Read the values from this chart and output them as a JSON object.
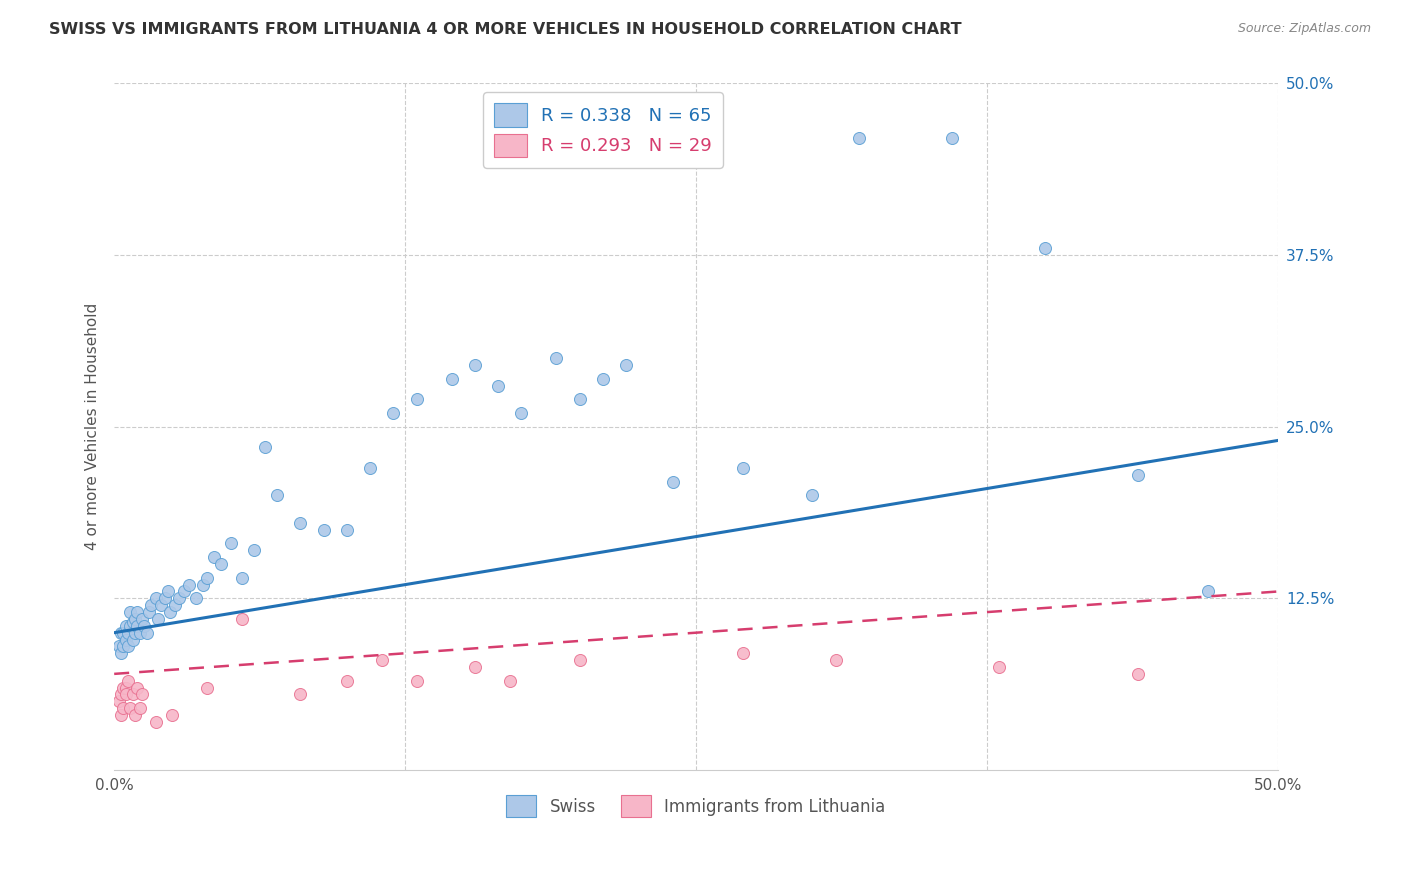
{
  "title": "SWISS VS IMMIGRANTS FROM LITHUANIA 4 OR MORE VEHICLES IN HOUSEHOLD CORRELATION CHART",
  "source": "Source: ZipAtlas.com",
  "ylabel": "4 or more Vehicles in Household",
  "xmin": 0.0,
  "xmax": 0.5,
  "ymin": 0.0,
  "ymax": 0.5,
  "grid_color": "#cccccc",
  "background_color": "#ffffff",
  "swiss_color": "#adc8e8",
  "swiss_edge_color": "#5a9fd4",
  "swiss_line_color": "#2171b5",
  "immigrants_color": "#f7b6c8",
  "immigrants_edge_color": "#e87090",
  "immigrants_line_color": "#d63d6e",
  "swiss_R": 0.338,
  "swiss_N": 65,
  "immigrants_R": 0.293,
  "immigrants_N": 29,
  "legend_label_swiss": "Swiss",
  "legend_label_immigrants": "Immigrants from Lithuania",
  "right_tick_color": "#2171b5",
  "swiss_x": [
    0.002,
    0.003,
    0.003,
    0.004,
    0.004,
    0.005,
    0.005,
    0.006,
    0.006,
    0.007,
    0.007,
    0.008,
    0.008,
    0.009,
    0.009,
    0.01,
    0.01,
    0.011,
    0.012,
    0.013,
    0.014,
    0.015,
    0.016,
    0.018,
    0.019,
    0.02,
    0.022,
    0.023,
    0.024,
    0.026,
    0.028,
    0.03,
    0.032,
    0.035,
    0.038,
    0.04,
    0.043,
    0.046,
    0.05,
    0.055,
    0.06,
    0.065,
    0.07,
    0.08,
    0.09,
    0.1,
    0.11,
    0.12,
    0.13,
    0.145,
    0.155,
    0.165,
    0.175,
    0.19,
    0.2,
    0.21,
    0.22,
    0.24,
    0.27,
    0.3,
    0.32,
    0.36,
    0.4,
    0.44,
    0.47
  ],
  "swiss_y": [
    0.09,
    0.085,
    0.1,
    0.09,
    0.1,
    0.095,
    0.105,
    0.09,
    0.1,
    0.105,
    0.115,
    0.095,
    0.108,
    0.1,
    0.11,
    0.105,
    0.115,
    0.1,
    0.11,
    0.105,
    0.1,
    0.115,
    0.12,
    0.125,
    0.11,
    0.12,
    0.125,
    0.13,
    0.115,
    0.12,
    0.125,
    0.13,
    0.135,
    0.125,
    0.135,
    0.14,
    0.155,
    0.15,
    0.165,
    0.14,
    0.16,
    0.235,
    0.2,
    0.18,
    0.175,
    0.175,
    0.22,
    0.26,
    0.27,
    0.285,
    0.295,
    0.28,
    0.26,
    0.3,
    0.27,
    0.285,
    0.295,
    0.21,
    0.22,
    0.2,
    0.46,
    0.46,
    0.38,
    0.215,
    0.13
  ],
  "immigrants_x": [
    0.002,
    0.003,
    0.003,
    0.004,
    0.004,
    0.005,
    0.005,
    0.006,
    0.007,
    0.008,
    0.009,
    0.01,
    0.011,
    0.012,
    0.018,
    0.025,
    0.04,
    0.055,
    0.08,
    0.1,
    0.115,
    0.13,
    0.155,
    0.17,
    0.2,
    0.27,
    0.31,
    0.38,
    0.44
  ],
  "immigrants_y": [
    0.05,
    0.04,
    0.055,
    0.06,
    0.045,
    0.06,
    0.055,
    0.065,
    0.045,
    0.055,
    0.04,
    0.06,
    0.045,
    0.055,
    0.035,
    0.04,
    0.06,
    0.11,
    0.055,
    0.065,
    0.08,
    0.065,
    0.075,
    0.065,
    0.08,
    0.085,
    0.08,
    0.075,
    0.07
  ]
}
